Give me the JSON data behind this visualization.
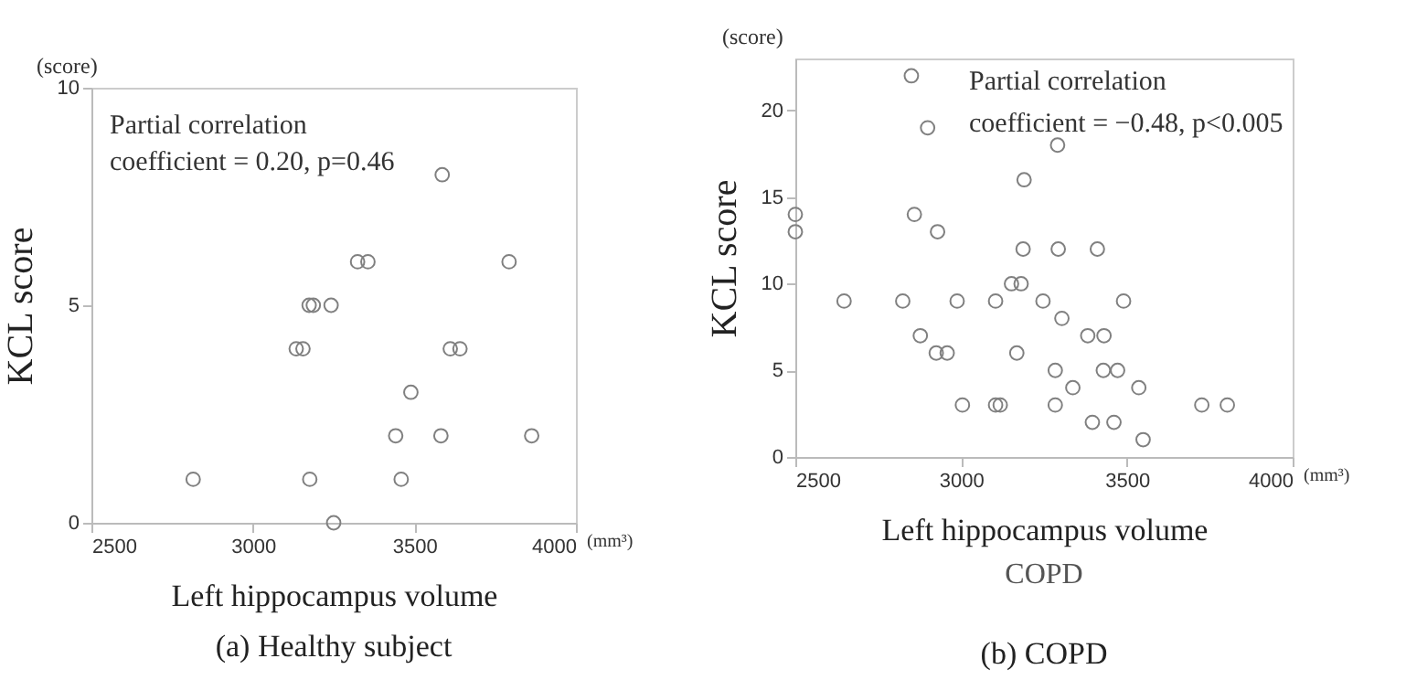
{
  "chart_data": [
    {
      "type": "scatter",
      "title": "(a) Healthy subject",
      "xlabel": "Left hippocampus volume",
      "ylabel": "KCL score",
      "xlim": [
        2500,
        4000
      ],
      "xticks": [
        2500,
        3000,
        3500,
        4000
      ],
      "ylim": [
        0,
        10
      ],
      "yticks": [
        0,
        5,
        10
      ],
      "marker": "circle",
      "annotations": [
        "(score)",
        "Partial correlation",
        "coefficient = 0.20,  p=0.46",
        "(mm³)"
      ],
      "series": [
        {
          "color": "#808080",
          "x": [
            2815,
            3176,
            3250,
            3459,
            3442,
            3582,
            3863,
            3489,
            3134,
            3155,
            3611,
            3641,
            3174,
            3187,
            3242,
            3324,
            3356,
            3793,
            3586
          ],
          "values": [
            1,
            1,
            0,
            1,
            2,
            2,
            2,
            3,
            4,
            4,
            4,
            4,
            5,
            5,
            5,
            6,
            6,
            6,
            8
          ]
        }
      ]
    },
    {
      "type": "scatter",
      "title": "(b) COPD",
      "xlabel": "Left hippocampus volume",
      "ylabel": "KCL score",
      "xlim": [
        2500,
        4000
      ],
      "xticks": [
        2500,
        3000,
        3500,
        4000
      ],
      "ylim": [
        0,
        23
      ],
      "yticks": [
        0,
        5,
        10,
        15,
        20
      ],
      "marker": "circle",
      "annotations": [
        "(score)",
        "Partial correlation",
        "coefficient = −0.48, p<0.005",
        "(mm³)",
        "COPD"
      ],
      "series": [
        {
          "color": "#808080",
          "x": [
            2850,
            2899,
            3291,
            3190,
            2500,
            2859,
            2500,
            2929,
            3187,
            3293,
            3411,
            3152,
            3181,
            2647,
            2824,
            2988,
            3104,
            3247,
            3490,
            3304,
            2877,
            3382,
            3431,
            2925,
            2958,
            3168,
            3284,
            3429,
            3472,
            3337,
            3536,
            3004,
            3104,
            3118,
            3284,
            3726,
            3803,
            3396,
            3461,
            3549
          ],
          "values": [
            22,
            19,
            18,
            16,
            14,
            14,
            13,
            13,
            12,
            12,
            12,
            10,
            10,
            9,
            9,
            9,
            9,
            9,
            9,
            8,
            7,
            7,
            7,
            6,
            6,
            6,
            5,
            5,
            5,
            4,
            4,
            3,
            3,
            3,
            3,
            3,
            3,
            2,
            2,
            1
          ]
        }
      ]
    }
  ]
}
